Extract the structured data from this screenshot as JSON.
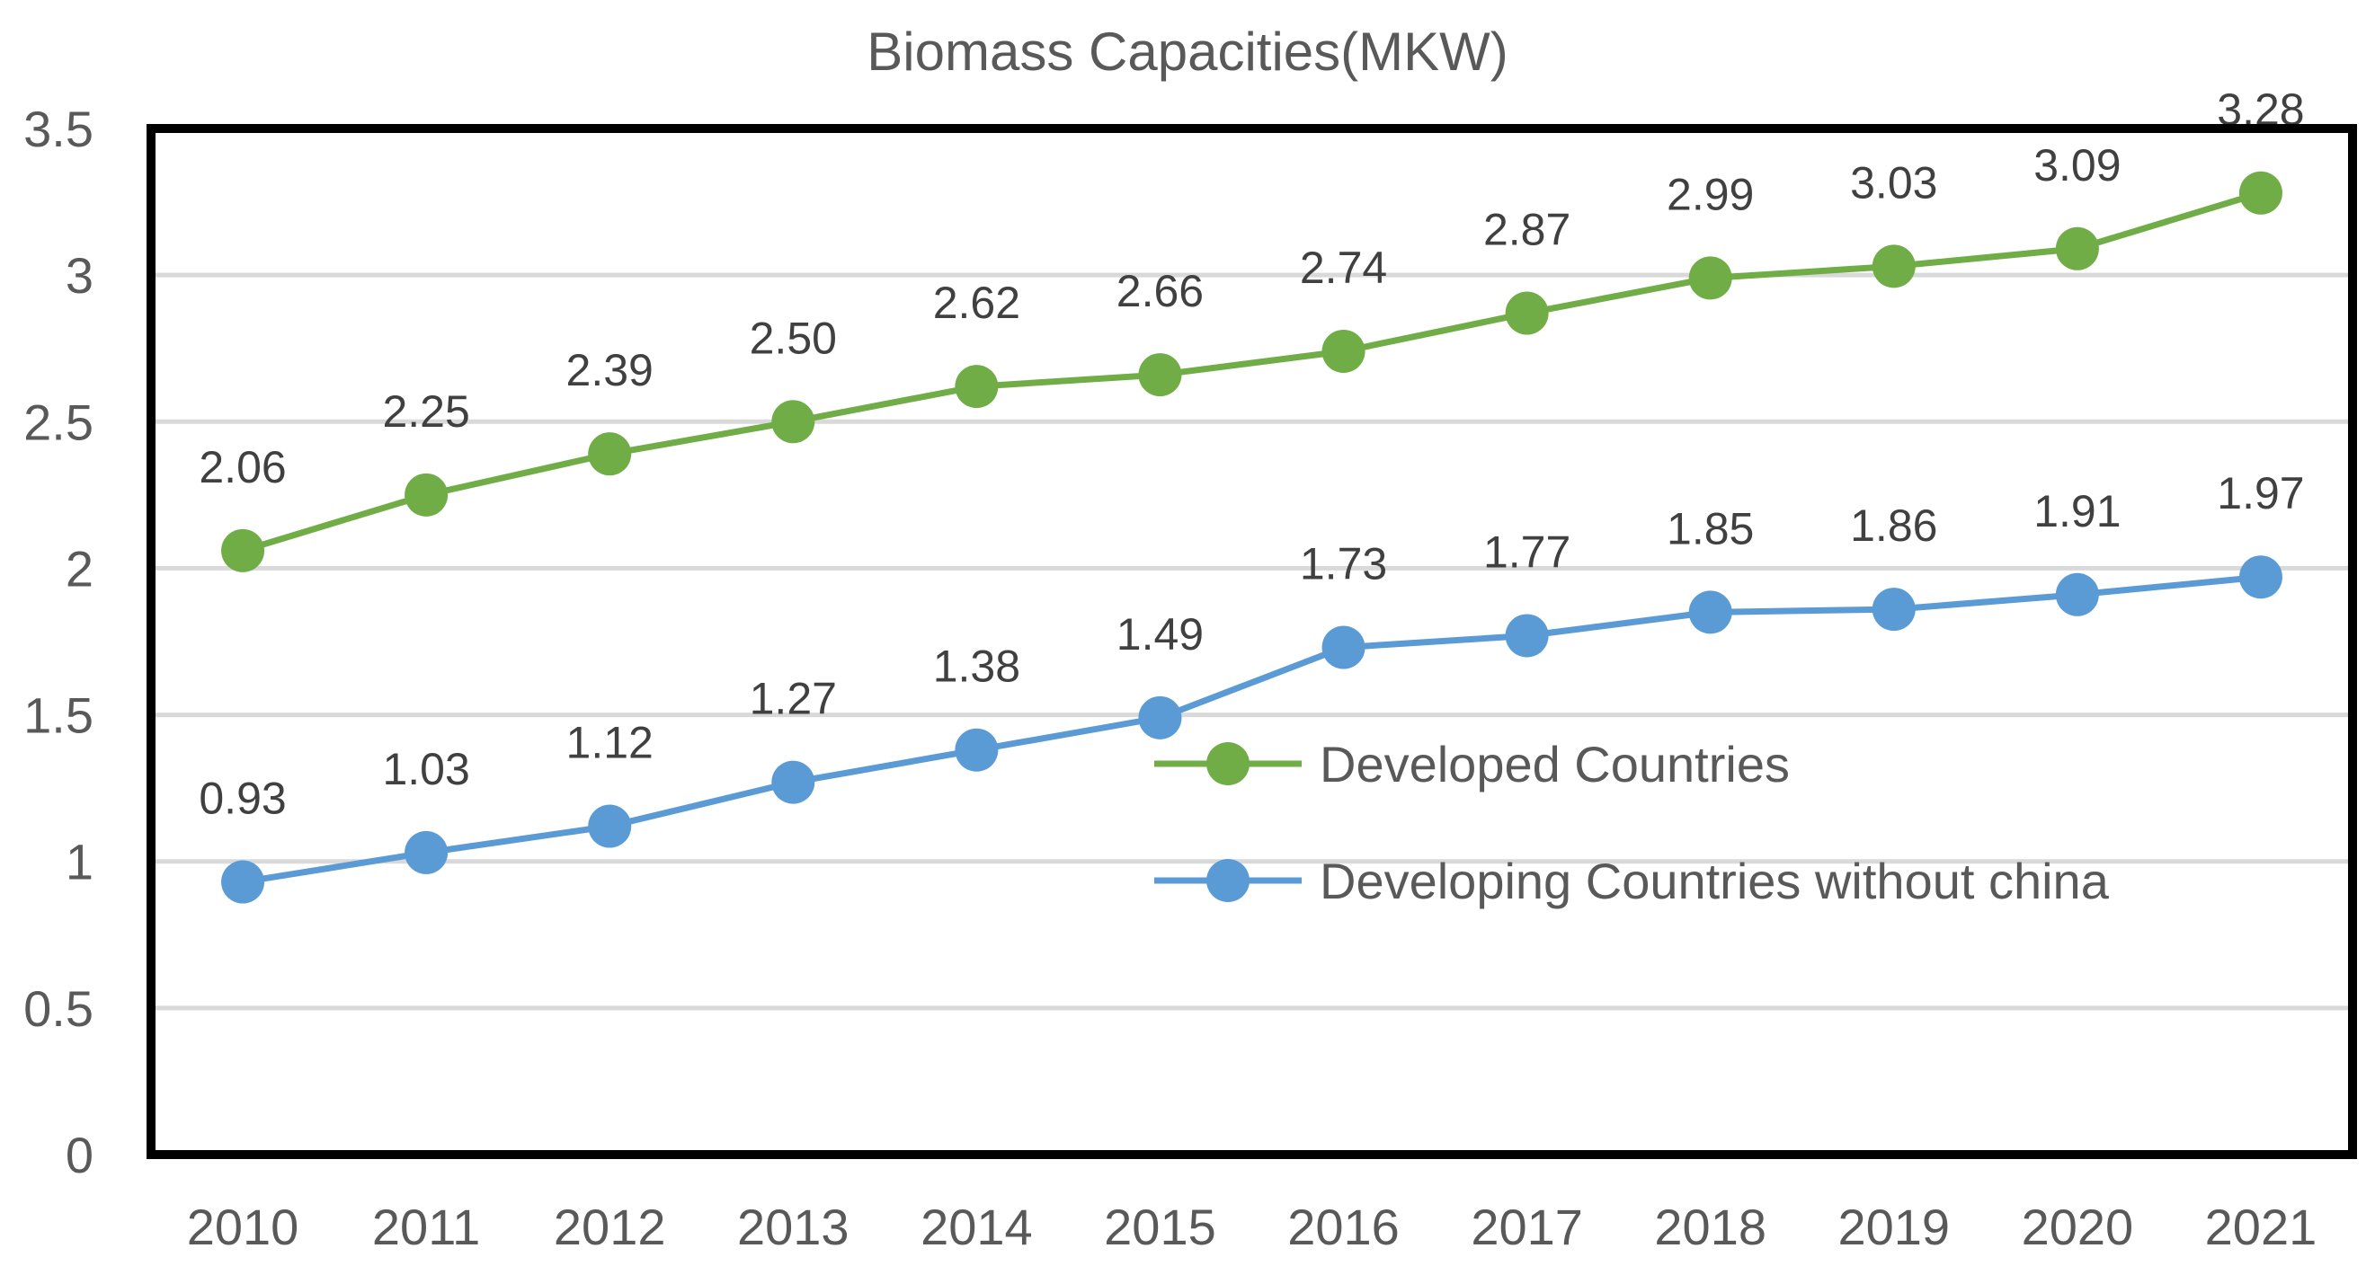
{
  "chart_data": {
    "type": "line",
    "title": "Biomass Capacities(MKW)",
    "xlabel": "",
    "ylabel": "",
    "categories": [
      "2010",
      "2011",
      "2012",
      "2013",
      "2014",
      "2015",
      "2016",
      "2017",
      "2018",
      "2019",
      "2020",
      "2021"
    ],
    "ylim": [
      0,
      3.5
    ],
    "yticks": [
      "0",
      "0.5",
      "1",
      "1.5",
      "2",
      "2.5",
      "3",
      "3.5"
    ],
    "grid": true,
    "legend_position": "center-right",
    "series": [
      {
        "name": "Developed Countries",
        "color": "#70ad47",
        "values": [
          2.06,
          2.25,
          2.39,
          2.5,
          2.62,
          2.66,
          2.74,
          2.87,
          2.99,
          3.03,
          3.09,
          3.28
        ],
        "labels": [
          "2.06",
          "2.25",
          "2.39",
          "2.50",
          "2.62",
          "2.66",
          "2.74",
          "2.87",
          "2.99",
          "3.03",
          "3.09",
          "3.28"
        ]
      },
      {
        "name": "Developing Countries without china",
        "color": "#5b9bd5",
        "values": [
          0.93,
          1.03,
          1.12,
          1.27,
          1.38,
          1.49,
          1.73,
          1.77,
          1.85,
          1.86,
          1.91,
          1.97
        ],
        "labels": [
          "0.93",
          "1.03",
          "1.12",
          "1.27",
          "1.38",
          "1.49",
          "1.73",
          "1.77",
          "1.85",
          "1.86",
          "1.91",
          "1.97"
        ]
      }
    ]
  }
}
